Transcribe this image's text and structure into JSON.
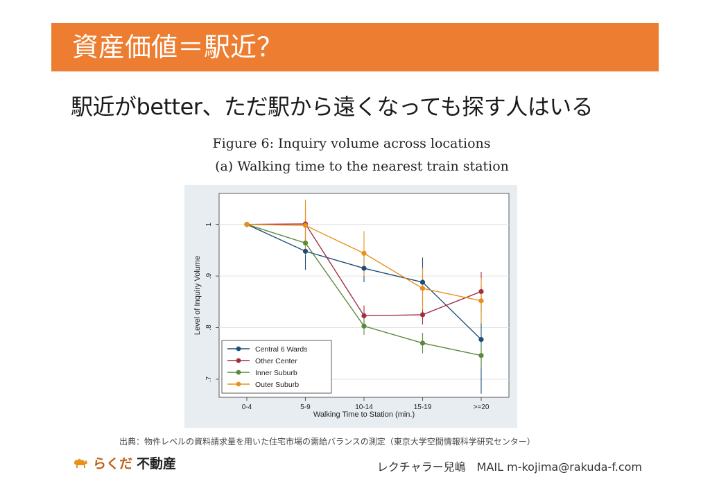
{
  "header": {
    "title": "資産価値＝駅近？"
  },
  "subtitle": "駅近がbetter、ただ駅から遠くなっても探す人はいる",
  "figure": {
    "title": "Figure 6: Inquiry volume across locations",
    "subtitle": "(a)  Walking time to the nearest train station"
  },
  "chart_data": {
    "type": "line",
    "xlabel": "Walking Time to Station (min.)",
    "ylabel": "Level of Inquiry Volume",
    "categories": [
      "0-4",
      "5-9",
      "10-14",
      "15-19",
      ">=20"
    ],
    "y_ticks": [
      ".7",
      ".8",
      ".9",
      "1"
    ],
    "y_tick_values": [
      0.7,
      0.8,
      0.9,
      1.0
    ],
    "ylim": [
      0.665,
      1.06
    ],
    "grid": true,
    "legend_position": "bottom-left",
    "series": [
      {
        "name": "Central 6 Wards",
        "color": "#1f4e79",
        "values": [
          1.0,
          0.948,
          0.915,
          0.888,
          0.777
        ],
        "ci_low": [
          1.0,
          0.912,
          0.888,
          0.845,
          0.672
        ],
        "ci_high": [
          1.0,
          0.985,
          0.943,
          0.936,
          0.88
        ]
      },
      {
        "name": "Other Center",
        "color": "#a03040",
        "values": [
          1.0,
          1.001,
          0.823,
          0.825,
          0.87
        ],
        "ci_low": [
          1.0,
          0.97,
          0.805,
          0.806,
          0.832
        ],
        "ci_high": [
          1.0,
          1.03,
          0.843,
          0.846,
          0.908
        ]
      },
      {
        "name": "Inner Suburb",
        "color": "#5a8a3a",
        "values": [
          1.0,
          0.964,
          0.803,
          0.77,
          0.746
        ],
        "ci_low": [
          1.0,
          0.94,
          0.786,
          0.75,
          0.722
        ],
        "ci_high": [
          1.0,
          0.99,
          0.82,
          0.79,
          0.77
        ]
      },
      {
        "name": "Outer Suburb",
        "color": "#e8901c",
        "values": [
          1.0,
          0.998,
          0.944,
          0.876,
          0.852
        ],
        "ci_low": [
          1.0,
          0.95,
          0.9,
          0.835,
          0.808
        ],
        "ci_high": [
          1.0,
          1.048,
          0.987,
          0.916,
          0.896
        ]
      }
    ]
  },
  "source": "出典：物件レベルの資料請求量を用いた住宅市場の需給バランスの測定（東京大学空間情報科学研究センター）",
  "logo": {
    "brand_kana": "らくだ",
    "brand_kanji": "不動産"
  },
  "footer": {
    "contact": "レクチャラー兒嶋　MAIL m-kojima@rakuda-f.com"
  }
}
